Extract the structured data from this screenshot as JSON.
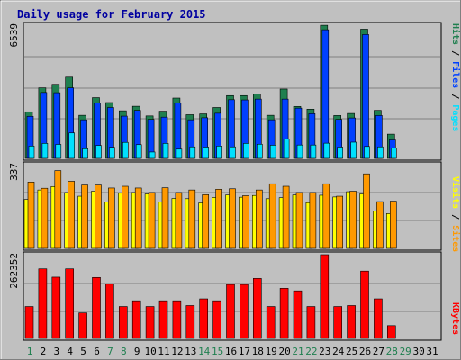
{
  "title": "Daily usage for February 2015",
  "colors": {
    "title": "#0000a0",
    "background": "#c0c0c0",
    "hits": "#1f7f4f",
    "files": "#0040ff",
    "pages": "#00e0ff",
    "visits": "#ff9900",
    "sites": "#ffff00",
    "kbytes": "#ff0000",
    "weekend_day": "#1f7f4f",
    "weekday_day": "#000000",
    "grid": "#808080"
  },
  "chart_data": [
    {
      "type": "bar",
      "panel": "hits-files-pages",
      "ymax_label": "6539",
      "ylim": [
        0,
        6539
      ],
      "legend": [
        {
          "name": "Pages",
          "color": "#00e0ff"
        },
        {
          "name": "Files",
          "color": "#0040ff"
        },
        {
          "name": "Hits",
          "color": "#1f7f4f"
        }
      ],
      "x": [
        1,
        2,
        3,
        4,
        5,
        6,
        7,
        8,
        9,
        10,
        11,
        12,
        13,
        14,
        15,
        16,
        17,
        18,
        19,
        20,
        21,
        22,
        23,
        24,
        25,
        26,
        27,
        28
      ],
      "series": [
        {
          "name": "Hits",
          "values": [
            2270,
            3440,
            3610,
            3960,
            2100,
            2960,
            2720,
            2320,
            2540,
            2070,
            2300,
            2940,
            2130,
            2170,
            2480,
            3060,
            3060,
            3140,
            2100,
            3380,
            2530,
            2400,
            6490,
            2090,
            2190,
            6300,
            2340,
            1180
          ]
        },
        {
          "name": "Files",
          "values": [
            2050,
            3210,
            3200,
            3440,
            1880,
            2700,
            2480,
            2060,
            2340,
            1900,
            2010,
            2700,
            1880,
            1980,
            2200,
            2860,
            2850,
            2890,
            1880,
            2890,
            2450,
            2180,
            6270,
            1900,
            1970,
            6040,
            2090,
            900
          ]
        },
        {
          "name": "Pages",
          "values": [
            600,
            730,
            680,
            1240,
            470,
            630,
            540,
            780,
            670,
            310,
            730,
            450,
            560,
            550,
            600,
            560,
            730,
            690,
            640,
            940,
            650,
            650,
            740,
            550,
            790,
            580,
            560,
            500
          ]
        }
      ]
    },
    {
      "type": "bar",
      "panel": "visits-sites",
      "ymax_label": "337",
      "ylim": [
        0,
        337
      ],
      "legend": [
        {
          "name": "Sites",
          "color": "#ff9900"
        },
        {
          "name": "Visits",
          "color": "#ffff00"
        }
      ],
      "x": [
        1,
        2,
        3,
        4,
        5,
        6,
        7,
        8,
        9,
        10,
        11,
        12,
        13,
        14,
        15,
        16,
        17,
        18,
        19,
        20,
        21,
        22,
        23,
        24,
        25,
        26,
        27,
        28
      ],
      "series": [
        {
          "name": "Visits",
          "values": [
            197,
            235,
            249,
            225,
            210,
            230,
            186,
            222,
            225,
            219,
            187,
            201,
            200,
            183,
            205,
            215,
            206,
            213,
            200,
            204,
            215,
            184,
            214,
            207,
            228,
            219,
            150,
            140
          ]
        },
        {
          "name": "Sites",
          "values": [
            267,
            242,
            313,
            270,
            255,
            255,
            243,
            250,
            243,
            225,
            244,
            225,
            235,
            216,
            238,
            240,
            212,
            235,
            260,
            250,
            225,
            225,
            260,
            210,
            230,
            300,
            188,
            190
          ]
        }
      ]
    },
    {
      "type": "bar",
      "panel": "kbytes",
      "ymax_label": "262352",
      "ylim": [
        0,
        262352
      ],
      "legend": [
        {
          "name": "KBytes",
          "color": "#ff0000"
        }
      ],
      "x": [
        1,
        2,
        3,
        4,
        5,
        6,
        7,
        8,
        9,
        10,
        11,
        12,
        13,
        14,
        15,
        16,
        17,
        18,
        19,
        20,
        21,
        22,
        23,
        24,
        25,
        26,
        27,
        28
      ],
      "series": [
        {
          "name": "KBytes",
          "values": [
            100000,
            218000,
            192000,
            218000,
            80000,
            191000,
            170000,
            100000,
            118000,
            100000,
            118000,
            118000,
            103000,
            124000,
            118000,
            169000,
            169000,
            188000,
            100000,
            157000,
            149000,
            100000,
            262352,
            100000,
            103000,
            211000,
            124000,
            40000
          ]
        }
      ]
    }
  ],
  "days": [
    "1",
    "2",
    "3",
    "4",
    "5",
    "6",
    "7",
    "8",
    "9",
    "10",
    "11",
    "12",
    "13",
    "14",
    "15",
    "16",
    "17",
    "18",
    "19",
    "20",
    "21",
    "22",
    "23",
    "24",
    "25",
    "26",
    "27",
    "28",
    "29",
    "30",
    "31"
  ],
  "weekend_days": [
    1,
    7,
    8,
    14,
    15,
    21,
    22,
    28,
    29
  ]
}
